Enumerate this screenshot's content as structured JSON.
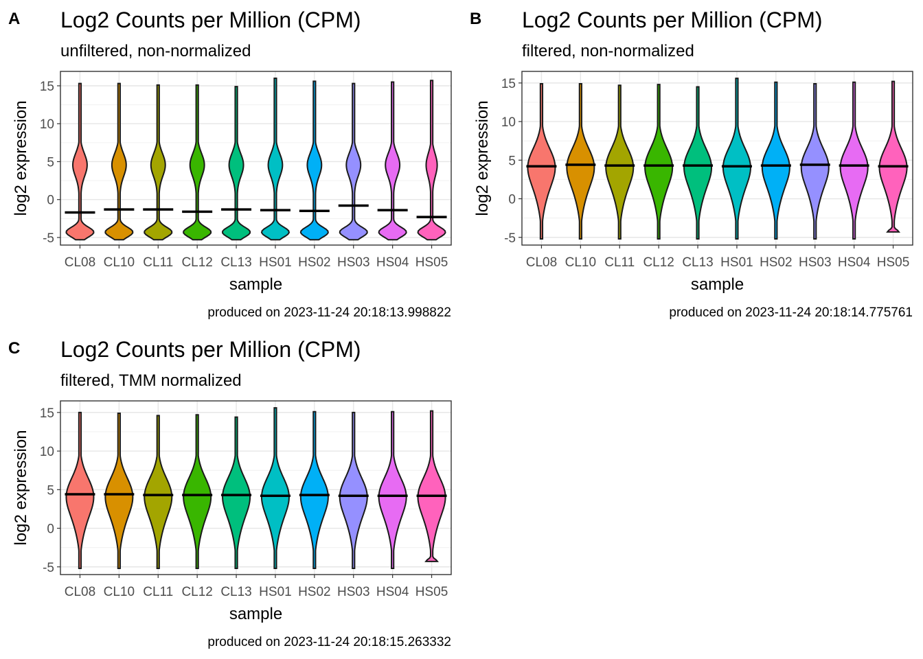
{
  "chart_data": [
    {
      "panel": "A",
      "type": "violin",
      "title": "Log2 Counts per Million (CPM)",
      "subtitle": "unfiltered, non-normalized",
      "xlabel": "sample",
      "ylabel": "log2 expression",
      "caption": "produced on 2023-11-24 20:18:13.998822",
      "ylim": [
        -6,
        16.9
      ],
      "yticks": [
        -5,
        0,
        5,
        10,
        15
      ],
      "grid": true,
      "categories": [
        "CL08",
        "CL10",
        "CL11",
        "CL12",
        "CL13",
        "HS01",
        "HS02",
        "HS03",
        "HS04",
        "HS05"
      ],
      "colors": [
        "#F8766D",
        "#D89000",
        "#A3A500",
        "#39B600",
        "#00BF7D",
        "#00BFC4",
        "#00B0F6",
        "#9590FF",
        "#E76BF3",
        "#FF62BC"
      ],
      "medians": [
        -1.7,
        -1.3,
        -1.3,
        -1.6,
        -1.3,
        -1.4,
        -1.5,
        -0.8,
        -1.4,
        -2.3
      ],
      "min": [
        -5.3,
        -5.3,
        -5.3,
        -5.3,
        -5.3,
        -5.3,
        -5.3,
        -5.3,
        -5.3,
        -5.3
      ],
      "max": [
        15.3,
        15.3,
        15.1,
        15.1,
        14.9,
        16.0,
        15.6,
        15.3,
        15.5,
        15.7
      ],
      "distribution_shape": "bimodal"
    },
    {
      "panel": "B",
      "type": "violin",
      "title": "Log2 Counts per Million (CPM)",
      "subtitle": "filtered, non-normalized",
      "xlabel": "sample",
      "ylabel": "log2 expression",
      "caption": "produced on 2023-11-24 20:18:14.775761",
      "ylim": [
        -6,
        16.5
      ],
      "yticks": [
        -5,
        0,
        5,
        10,
        15
      ],
      "grid": true,
      "categories": [
        "CL08",
        "CL10",
        "CL11",
        "CL12",
        "CL13",
        "HS01",
        "HS02",
        "HS03",
        "HS04",
        "HS05"
      ],
      "colors": [
        "#F8766D",
        "#D89000",
        "#A3A500",
        "#39B600",
        "#00BF7D",
        "#00BFC4",
        "#00B0F6",
        "#9590FF",
        "#E76BF3",
        "#FF62BC"
      ],
      "medians": [
        4.2,
        4.4,
        4.3,
        4.3,
        4.3,
        4.2,
        4.3,
        4.4,
        4.3,
        4.2
      ],
      "min": [
        -5.2,
        -5.2,
        -5.2,
        -5.2,
        -5.2,
        -5.2,
        -5.2,
        -5.2,
        -5.2,
        -4.3
      ],
      "max": [
        14.9,
        14.9,
        14.7,
        14.8,
        14.5,
        15.6,
        15.1,
        14.9,
        15.1,
        15.2
      ],
      "distribution_shape": "unimodal"
    },
    {
      "panel": "C",
      "type": "violin",
      "title": "Log2 Counts per Million (CPM)",
      "subtitle": "filtered, TMM normalized",
      "xlabel": "sample",
      "ylabel": "log2 expression",
      "caption": "produced on 2023-11-24 20:18:15.263332",
      "ylim": [
        -6,
        16.5
      ],
      "yticks": [
        -5,
        0,
        5,
        10,
        15
      ],
      "grid": true,
      "categories": [
        "CL08",
        "CL10",
        "CL11",
        "CL12",
        "CL13",
        "HS01",
        "HS02",
        "HS03",
        "HS04",
        "HS05"
      ],
      "colors": [
        "#F8766D",
        "#D89000",
        "#A3A500",
        "#39B600",
        "#00BF7D",
        "#00BFC4",
        "#00B0F6",
        "#9590FF",
        "#E76BF3",
        "#FF62BC"
      ],
      "medians": [
        4.4,
        4.4,
        4.3,
        4.3,
        4.3,
        4.2,
        4.3,
        4.2,
        4.2,
        4.2
      ],
      "min": [
        -5.2,
        -5.2,
        -5.2,
        -5.2,
        -5.2,
        -5.2,
        -5.2,
        -5.2,
        -5.2,
        -4.3
      ],
      "max": [
        15.0,
        14.9,
        14.6,
        14.7,
        14.4,
        15.6,
        15.1,
        15.0,
        15.1,
        15.2
      ],
      "distribution_shape": "unimodal"
    }
  ]
}
